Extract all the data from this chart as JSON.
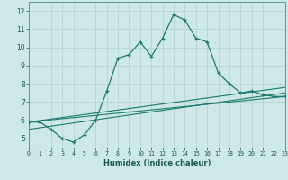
{
  "title": "",
  "xlabel": "Humidex (Indice chaleur)",
  "ylabel": "",
  "background_color": "#cde8e5",
  "grid_color": "#b8d4d0",
  "line_color": "#1a7a6e",
  "xlim": [
    0,
    23
  ],
  "ylim": [
    4.5,
    12.5
  ],
  "ytick_values": [
    5,
    6,
    7,
    8,
    9,
    10,
    11,
    12
  ],
  "xtick_values": [
    0,
    1,
    2,
    3,
    4,
    5,
    6,
    7,
    8,
    9,
    10,
    11,
    12,
    13,
    14,
    15,
    16,
    17,
    18,
    19,
    20,
    21,
    22,
    23
  ],
  "xtick_labels": [
    "0",
    "1",
    "2",
    "3",
    "4",
    "5",
    "6",
    "7",
    "8",
    "9",
    "10",
    "11",
    "12",
    "13",
    "14",
    "15",
    "16",
    "17",
    "18",
    "19",
    "20",
    "21",
    "22",
    "23"
  ],
  "curve1_x": [
    0,
    1,
    2,
    3,
    4,
    5,
    6,
    7,
    8,
    9,
    10,
    11,
    12,
    13,
    14,
    15,
    16,
    17,
    18,
    19,
    20,
    21,
    22,
    23
  ],
  "curve1_y": [
    5.9,
    5.9,
    5.5,
    5.0,
    4.8,
    5.2,
    6.0,
    7.6,
    9.4,
    9.6,
    10.3,
    9.5,
    10.5,
    11.8,
    11.5,
    10.5,
    10.3,
    8.6,
    8.0,
    7.5,
    7.6,
    7.4,
    7.3,
    7.3
  ],
  "curve2_x": [
    0,
    23
  ],
  "curve2_y": [
    5.9,
    7.8
  ],
  "curve3_x": [
    0,
    23
  ],
  "curve3_y": [
    5.9,
    7.3
  ],
  "curve4_x": [
    0,
    23
  ],
  "curve4_y": [
    5.5,
    7.5
  ]
}
